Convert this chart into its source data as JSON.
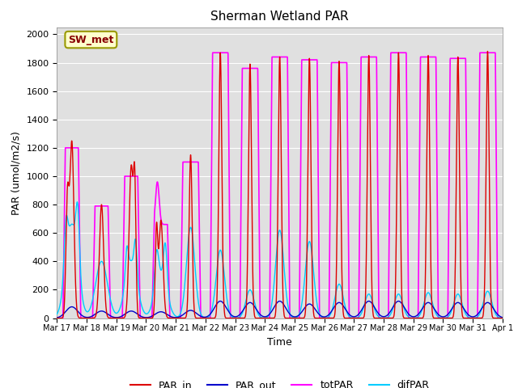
{
  "title": "Sherman Wetland PAR",
  "ylabel": "PAR (umol/m2/s)",
  "xlabel": "Time",
  "ylim": [
    0,
    2050
  ],
  "yticks": [
    0,
    200,
    400,
    600,
    800,
    1000,
    1200,
    1400,
    1600,
    1800,
    2000
  ],
  "xtick_labels": [
    "Mar 17",
    "Mar 18",
    "Mar 19",
    "Mar 20",
    "Mar 21",
    "Mar 22",
    "Mar 23",
    "Mar 24",
    "Mar 25",
    "Mar 26",
    "Mar 27",
    "Mar 28",
    "Mar 29",
    "Mar 30",
    "Mar 31",
    "Apr 1"
  ],
  "bg_color": "#e0e0e0",
  "fig_bg": "#ffffff",
  "grid_color": "#ffffff",
  "label_box_text": "SW_met",
  "label_box_facecolor": "#ffffcc",
  "label_box_edgecolor": "#999900",
  "colors": {
    "PAR_in": "#dd0000",
    "PAR_out": "#0000cc",
    "totPAR": "#ff00ff",
    "difPAR": "#00ccff"
  },
  "linewidths": {
    "PAR_in": 1.0,
    "PAR_out": 1.0,
    "totPAR": 1.2,
    "difPAR": 1.0
  },
  "par_in_peaks": [
    1240,
    800,
    1070,
    690,
    1150,
    1870,
    1790,
    1840,
    1830,
    1810,
    1850,
    1870,
    1850,
    1840,
    1880
  ],
  "tot_par_peaks": [
    1200,
    790,
    1000,
    660,
    1100,
    1870,
    1760,
    1840,
    1820,
    1800,
    1840,
    1870,
    1840,
    1830,
    1870
  ],
  "par_out_peaks": [
    80,
    50,
    50,
    45,
    55,
    120,
    110,
    120,
    100,
    110,
    120,
    120,
    110,
    110,
    110
  ],
  "dif_par_peaks": [
    660,
    400,
    400,
    300,
    640,
    480,
    200,
    620,
    540,
    240,
    170,
    170,
    180,
    170,
    190
  ]
}
